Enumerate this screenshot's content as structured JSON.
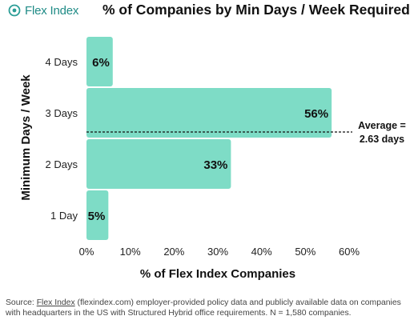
{
  "brand": {
    "name": "Flex Index",
    "color": "#2a9d96",
    "icon": "flex-index-logo-icon"
  },
  "title": "% of Companies by Min Days / Week Required",
  "chart_data": {
    "type": "bar",
    "orientation": "horizontal",
    "title": "% of Companies by Min Days / Week Required",
    "xlabel": "% of Flex Index Companies",
    "ylabel": "Minimum Days / Week",
    "categories": [
      "4 Days",
      "3 Days",
      "2 Days",
      "1 Day"
    ],
    "values": [
      6,
      56,
      33,
      5
    ],
    "value_labels": [
      "6%",
      "56%",
      "33%",
      "5%"
    ],
    "xlim": [
      0,
      60
    ],
    "xticks": [
      0,
      10,
      20,
      30,
      40,
      50,
      60
    ],
    "xtick_labels": [
      "0%",
      "10%",
      "20%",
      "30%",
      "40%",
      "50%",
      "60%"
    ],
    "bar_color": "#7edcc6",
    "grid": false,
    "average": {
      "value": 2.63,
      "label_line1": "Average =",
      "label_line2": "2.63 days"
    }
  },
  "source": {
    "prefix": "Source: ",
    "link_text": "Flex Index",
    "text": " (flexindex.com) employer-provided policy data and publicly available data on companies with headquarters in the US with Structured Hybrid office requirements. N = 1,580 companies."
  }
}
